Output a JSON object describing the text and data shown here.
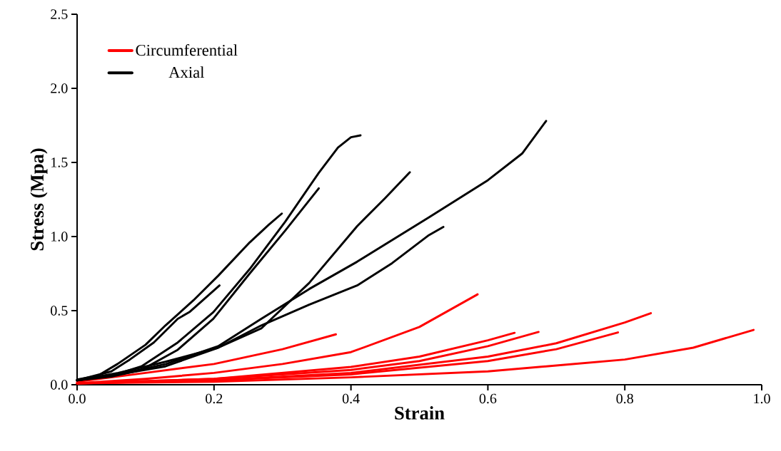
{
  "chart_data": {
    "type": "line",
    "xlabel": "Strain",
    "ylabel": "Stress (Mpa)",
    "xlim": [
      0,
      1
    ],
    "ylim": [
      0,
      2.5
    ],
    "xticks": [
      {
        "value": 0,
        "label": "0.0"
      },
      0.2,
      0.4,
      0.6,
      0.8,
      {
        "value": 1,
        "label": "1.0"
      }
    ],
    "yticks": [
      {
        "value": 0,
        "label": "0.0"
      },
      0.5,
      {
        "value": 1,
        "label": "1.0"
      },
      1.5,
      {
        "value": 2,
        "label": "2.0"
      },
      2.5
    ],
    "legend": "top left",
    "marker": "none",
    "line_style": "solid",
    "series": [
      {
        "name": "Circumferential",
        "color": "#ff0000",
        "x": [
          0,
          0.1,
          0.2,
          0.3,
          0.378
        ],
        "values": [
          0.02,
          0.08,
          0.14,
          0.24,
          0.34
        ]
      },
      {
        "color": "#ff0000",
        "x": [
          0,
          0.1,
          0.2,
          0.3,
          0.4,
          0.5,
          0.585
        ],
        "values": [
          0.01,
          0.04,
          0.08,
          0.14,
          0.22,
          0.39,
          0.61
        ]
      },
      {
        "color": "#ff0000",
        "x": [
          0,
          0.2,
          0.4,
          0.5,
          0.6,
          0.639
        ],
        "values": [
          0.01,
          0.04,
          0.12,
          0.19,
          0.3,
          0.35
        ]
      },
      {
        "color": "#ff0000",
        "x": [
          0,
          0.2,
          0.4,
          0.5,
          0.6,
          0.674
        ],
        "values": [
          0.01,
          0.04,
          0.1,
          0.16,
          0.26,
          0.356
        ]
      },
      {
        "color": "#ff0000",
        "x": [
          0,
          0.2,
          0.4,
          0.6,
          0.7,
          0.8,
          0.838
        ],
        "values": [
          0.01,
          0.03,
          0.08,
          0.19,
          0.28,
          0.42,
          0.483
        ]
      },
      {
        "color": "#ff0000",
        "x": [
          0,
          0.2,
          0.4,
          0.6,
          0.7,
          0.79
        ],
        "values": [
          0.01,
          0.03,
          0.07,
          0.16,
          0.24,
          0.353
        ]
      },
      {
        "color": "#ff0000",
        "x": [
          0,
          0.2,
          0.4,
          0.6,
          0.8,
          0.9,
          0.988
        ],
        "values": [
          0.01,
          0.02,
          0.05,
          0.09,
          0.17,
          0.25,
          0.37
        ]
      },
      {
        "name": "Axial",
        "color": "#000000",
        "x": [
          0,
          0.03,
          0.059,
          0.1,
          0.129,
          0.17,
          0.206,
          0.252,
          0.28,
          0.299
        ],
        "values": [
          0.035,
          0.06,
          0.14,
          0.27,
          0.4,
          0.57,
          0.735,
          0.96,
          1.08,
          1.155
        ]
      },
      {
        "color": "#000000",
        "x": [
          0,
          0.05,
          0.077,
          0.112,
          0.147,
          0.164,
          0.208
        ],
        "values": [
          0.03,
          0.09,
          0.17,
          0.285,
          0.445,
          0.49,
          0.67
        ]
      },
      {
        "color": "#000000",
        "x": [
          0,
          0.05,
          0.094,
          0.147,
          0.199,
          0.252,
          0.304,
          0.353,
          0.381,
          0.4,
          0.414
        ],
        "values": [
          0.03,
          0.06,
          0.124,
          0.285,
          0.49,
          0.78,
          1.1,
          1.43,
          1.6,
          1.67,
          1.683
        ]
      },
      {
        "color": "#000000",
        "x": [
          0,
          0.05,
          0.094,
          0.147,
          0.199,
          0.252,
          0.304,
          0.353
        ],
        "values": [
          0.03,
          0.055,
          0.1,
          0.236,
          0.445,
          0.75,
          1.04,
          1.325
        ]
      },
      {
        "color": "#000000",
        "x": [
          0,
          0.06,
          0.129,
          0.206,
          0.269,
          0.339,
          0.409,
          0.45,
          0.486
        ],
        "values": [
          0.03,
          0.07,
          0.124,
          0.25,
          0.38,
          0.687,
          1.07,
          1.26,
          1.434
        ]
      },
      {
        "color": "#000000",
        "x": [
          0,
          0.06,
          0.13,
          0.206,
          0.269,
          0.339,
          0.409,
          0.514,
          0.6,
          0.65,
          0.685
        ],
        "values": [
          0.03,
          0.07,
          0.14,
          0.26,
          0.445,
          0.646,
          0.83,
          1.13,
          1.38,
          1.56,
          1.78
        ]
      },
      {
        "color": "#000000",
        "x": [
          0,
          0.06,
          0.129,
          0.206,
          0.269,
          0.339,
          0.409,
          0.46,
          0.514,
          0.535
        ],
        "values": [
          0.03,
          0.08,
          0.155,
          0.25,
          0.4,
          0.54,
          0.67,
          0.82,
          1.01,
          1.065
        ]
      }
    ]
  }
}
